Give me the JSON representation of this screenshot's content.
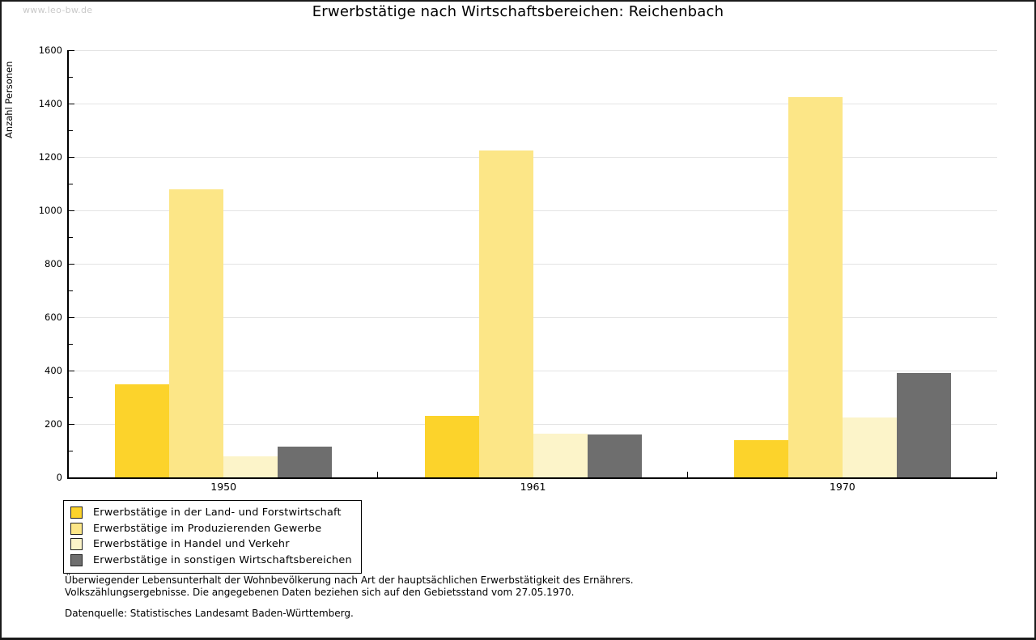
{
  "watermark": "www.leo-bw.de",
  "title": "Erwerbstätige nach Wirtschaftsbereichen: Reichenbach",
  "colors": {
    "land_forst": "#FCD32B",
    "produzierendes_gewerbe": "#FCE687",
    "handel_verkehr": "#FCF4C9",
    "sonstige": "#6E6E6E",
    "gridline": "#E4E4E4",
    "axis": "#000000",
    "watermark": "#C9C9C9"
  },
  "chart_data": {
    "type": "bar",
    "title": "Erwerbstätige nach Wirtschaftsbereichen: Reichenbach",
    "xlabel": "",
    "ylabel": "Anzahl Personen",
    "categories": [
      "1950",
      "1961",
      "1970"
    ],
    "series": [
      {
        "name": "Erwerbstätige in der Land- und Forstwirtschaft",
        "color": "#FCD32B",
        "values": [
          350,
          230,
          140
        ]
      },
      {
        "name": "Erwerbstätige im Produzierenden Gewerbe",
        "color": "#FCE687",
        "values": [
          1080,
          1225,
          1425
        ]
      },
      {
        "name": "Erwerbstätige in Handel und Verkehr",
        "color": "#FCF4C9",
        "values": [
          80,
          165,
          225
        ]
      },
      {
        "name": "Erwerbstätige in sonstigen Wirtschaftsbereichen",
        "color": "#6E6E6E",
        "values": [
          115,
          160,
          390
        ]
      }
    ],
    "ylim": [
      0,
      1600
    ],
    "ytick_step": 200,
    "minor_tick_step": 100,
    "grid": true,
    "legend_position": "bottom-left"
  },
  "footnotes": {
    "line1": "Überwiegender Lebensunterhalt der Wohnbevölkerung nach Art der hauptsächlichen Erwerbstätigkeit des Ernährers.",
    "line2": "Volkszählungsergebnisse. Die angegebenen Daten beziehen sich auf den Gebietsstand vom 27.05.1970.",
    "source": "Datenquelle: Statistisches Landesamt Baden-Württemberg."
  }
}
